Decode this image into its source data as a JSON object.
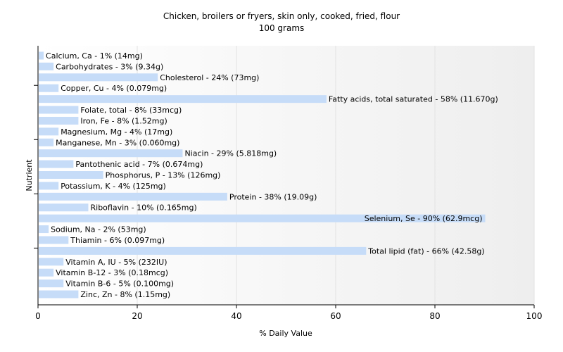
{
  "chart_data": {
    "type": "bar",
    "orientation": "horizontal",
    "title": "Chicken, broilers or fryers, skin only, cooked, fried, flour",
    "subtitle": "100 grams",
    "xlabel": "% Daily Value",
    "ylabel": "Nutrient",
    "xlim": [
      0,
      100
    ],
    "xticks": [
      "0",
      "20",
      "40",
      "60",
      "80",
      "100"
    ],
    "grid": true,
    "bar_color": "#c6dcf8",
    "categories": [
      "Calcium, Ca",
      "Carbohydrates",
      "Cholesterol",
      "Copper, Cu",
      "Fatty acids, total saturated",
      "Folate, total",
      "Iron, Fe",
      "Magnesium, Mg",
      "Manganese, Mn",
      "Niacin",
      "Pantothenic acid",
      "Phosphorus, P",
      "Potassium, K",
      "Protein",
      "Riboflavin",
      "Selenium, Se",
      "Sodium, Na",
      "Thiamin",
      "Total lipid (fat)",
      "Vitamin A, IU",
      "Vitamin B-12",
      "Vitamin B-6",
      "Zinc, Zn"
    ],
    "values": [
      1,
      3,
      24,
      4,
      58,
      8,
      8,
      4,
      3,
      29,
      7,
      13,
      4,
      38,
      10,
      90,
      2,
      6,
      66,
      5,
      3,
      5,
      8
    ],
    "labels": [
      "Calcium, Ca - 1% (14mg)",
      "Carbohydrates - 3% (9.34g)",
      "Cholesterol - 24% (73mg)",
      "Copper, Cu - 4% (0.079mg)",
      "Fatty acids, total saturated - 58% (11.670g)",
      "Folate, total - 8% (33mcg)",
      "Iron, Fe - 8% (1.52mg)",
      "Magnesium, Mg - 4% (17mg)",
      "Manganese, Mn - 3% (0.060mg)",
      "Niacin - 29% (5.818mg)",
      "Pantothenic acid - 7% (0.674mg)",
      "Phosphorus, P - 13% (126mg)",
      "Potassium, K - 4% (125mg)",
      "Protein - 38% (19.09g)",
      "Riboflavin - 10% (0.165mg)",
      "Selenium, Se - 90% (62.9mcg)",
      "Sodium, Na - 2% (53mg)",
      "Thiamin - 6% (0.097mg)",
      "Total lipid (fat) - 66% (42.58g)",
      "Vitamin A, IU - 5% (232IU)",
      "Vitamin B-12 - 3% (0.18mcg)",
      "Vitamin B-6 - 5% (0.100mg)",
      "Zinc, Zn - 8% (1.15mg)"
    ]
  }
}
